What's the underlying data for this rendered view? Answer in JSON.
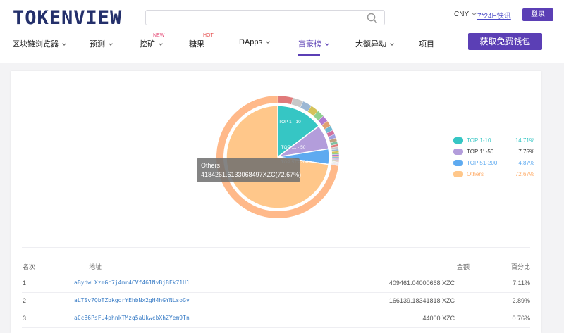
{
  "header": {
    "logo": "TOKENVIEW",
    "search_placeholder": "",
    "currency": "CNY",
    "help_link": "7*24H快讯",
    "login_label": "登录"
  },
  "nav": {
    "items": [
      {
        "label": "区块链浏览器",
        "has_dropdown": true
      },
      {
        "label": "预测",
        "has_dropdown": true
      },
      {
        "label": "挖矿",
        "has_dropdown": true,
        "badge": "NEW"
      },
      {
        "label": "糖果",
        "has_dropdown": false,
        "badge": "HOT"
      },
      {
        "label": "DApps",
        "has_dropdown": true
      },
      {
        "label": "富豪榜",
        "has_dropdown": true,
        "active": true
      },
      {
        "label": "大额异动",
        "has_dropdown": true
      },
      {
        "label": "项目",
        "has_dropdown": false
      }
    ],
    "wallet_button": "获取免费钱包"
  },
  "chart_data": {
    "type": "pie",
    "categories": [
      "TOP 1-10",
      "TOP 11-50",
      "TOP 51-200",
      "Others"
    ],
    "inner_labels": [
      "TOP 1 - 10",
      "TOP 11 - 50",
      "TOP 51 - 200"
    ],
    "values": [
      14.71,
      7.75,
      4.87,
      72.67
    ],
    "value_labels": [
      "14.71%",
      "7.75%",
      "4.87%",
      "72.67%"
    ],
    "colors": [
      "#36c6c4",
      "#b39ddb",
      "#5eaaf0",
      "#ffc78a"
    ],
    "label_colors": [
      "#36c6c4",
      "#333333",
      "#5eaaf0",
      "#ffab66"
    ],
    "outer_ring_color": "#ffb98a",
    "tooltip": {
      "name": "Others",
      "value": "4184261.6133068497XZC(72.67%)"
    }
  },
  "table": {
    "headers": {
      "rank": "名次",
      "address": "地址",
      "amount": "金额",
      "percent": "百分比"
    },
    "rows": [
      {
        "rank": "1",
        "address": "aBydwLXzmGc7j4mr4CVf461NvBjBFk71U1",
        "amount": "409461.04000668 XZC",
        "percent": "7.11%"
      },
      {
        "rank": "2",
        "address": "aLTSv7QbTZbkgorYEhbNx2gH4hGYNLsoGv",
        "amount": "166139.18341818 XZC",
        "percent": "2.89%"
      },
      {
        "rank": "3",
        "address": "aCc86PsFU4phnkTMzq5aUkwcbXhZYem9Tn",
        "amount": "44000 XZC",
        "percent": "0.76%"
      }
    ]
  }
}
